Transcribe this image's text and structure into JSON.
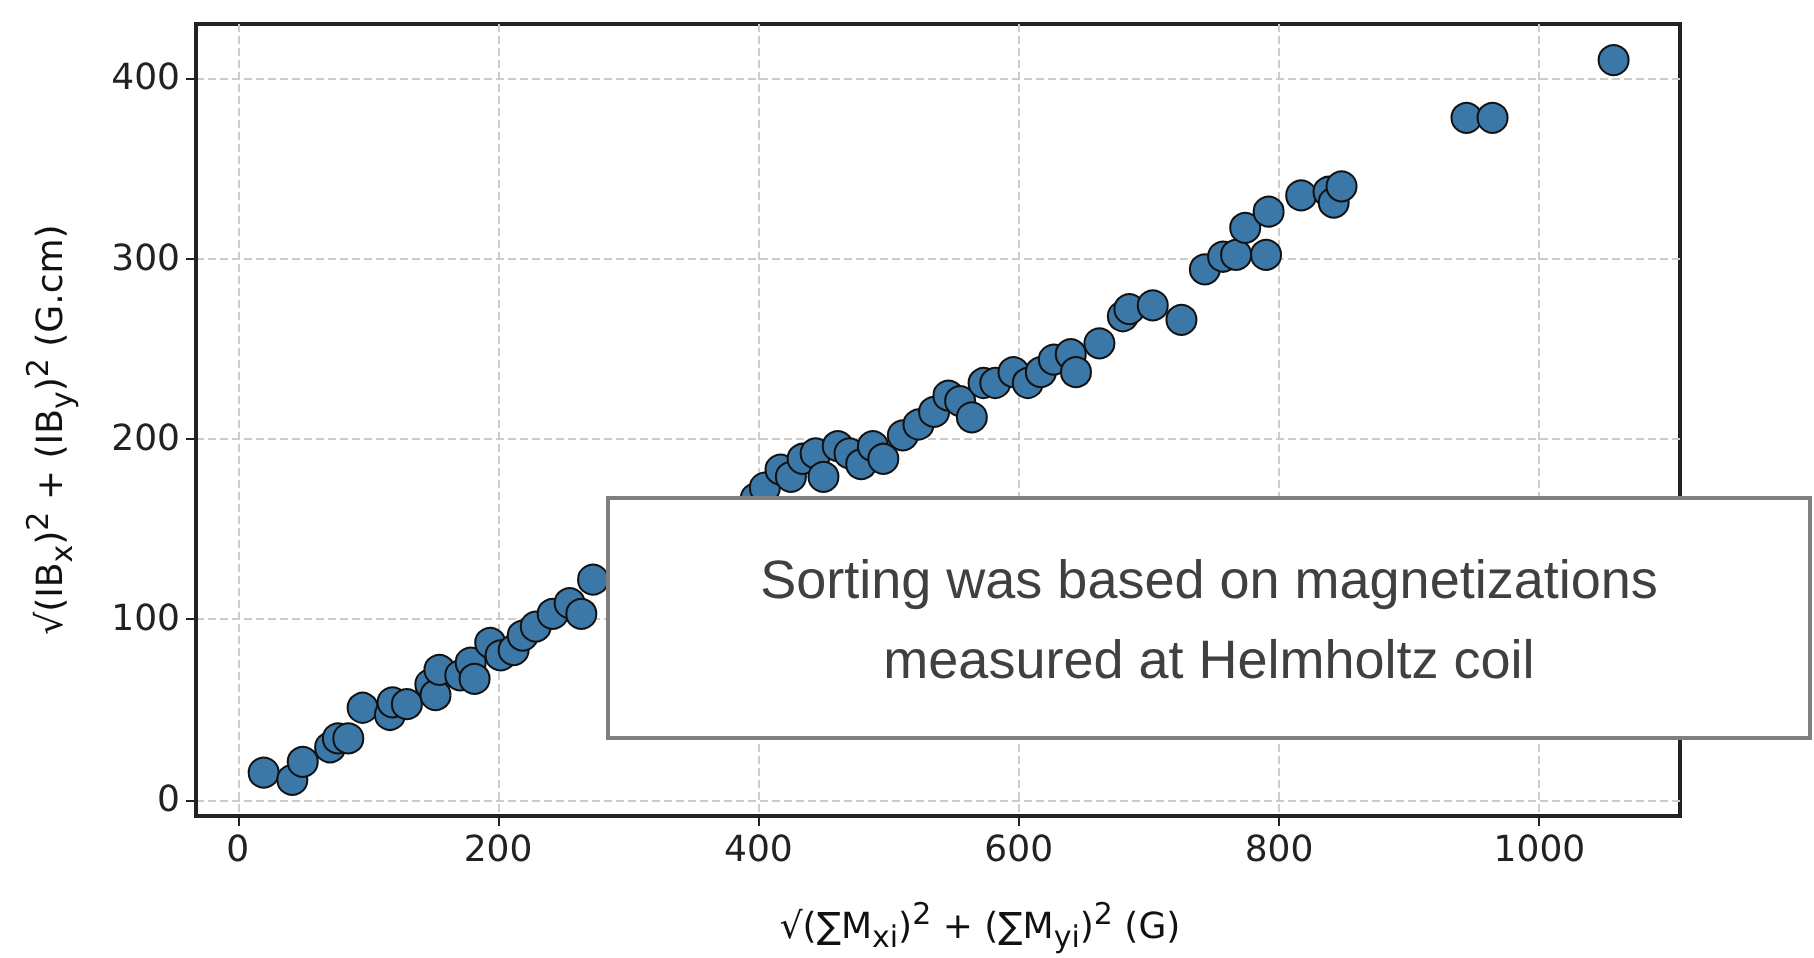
{
  "chart_data": {
    "type": "scatter",
    "xlabel": "√(∑M$_{xi}$)$^{2}$ + (∑M$_{yi}$)$^{2}$ (G)",
    "ylabel": "√(IB$_{x}$)$^{2}$ + (IB$_{y}$)$^{2}$ (G.cm)",
    "annotations": [
      "Sorting was based on magnetizations measured at Helmholtz coil"
    ],
    "x": [
      20,
      42,
      50,
      71,
      77,
      85,
      96,
      117,
      119,
      130,
      148,
      152,
      155,
      171,
      179,
      182,
      194,
      202,
      212,
      219,
      229,
      242,
      255,
      264,
      273,
      398,
      405,
      417,
      425,
      434,
      444,
      450,
      461,
      470,
      479,
      488,
      496,
      511,
      523,
      535,
      546,
      555,
      564,
      573,
      582,
      596,
      607,
      617,
      627,
      640,
      644,
      662,
      680,
      685,
      703,
      725,
      743,
      757,
      767,
      790,
      774,
      792,
      817,
      838,
      842,
      848,
      944,
      964,
      1057
    ],
    "series": [
      {
        "color": "#3b78a8",
        "values": [
          15,
          11,
          21,
          29,
          34,
          34,
          51,
          47,
          54,
          53,
          64,
          58,
          72,
          69,
          76,
          67,
          87,
          80,
          83,
          91,
          96,
          103,
          109,
          103,
          122,
          167,
          173,
          183,
          179,
          189,
          192,
          179,
          196,
          192,
          186,
          196,
          189,
          202,
          208,
          215,
          224,
          221,
          212,
          231,
          231,
          237,
          231,
          237,
          244,
          247,
          237,
          253,
          268,
          272,
          274,
          266,
          294,
          301,
          302,
          302,
          317,
          326,
          335,
          337,
          331,
          340,
          378,
          378,
          410
        ]
      }
    ],
    "xlim": [
      -32,
      1108
    ],
    "ylim": [
      -9,
      430
    ],
    "xticks": [
      0,
      200,
      400,
      600,
      800,
      1000
    ],
    "yticks": [
      0,
      100,
      200,
      300,
      400
    ],
    "grid": true,
    "marker": "circle"
  }
}
